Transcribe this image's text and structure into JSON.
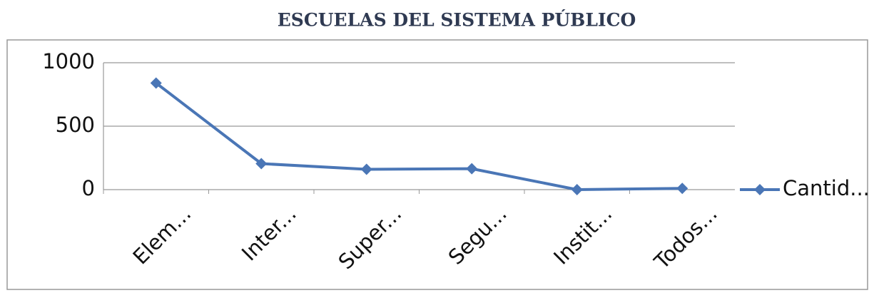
{
  "chart_data": {
    "type": "line",
    "title": "ESCUELAS DEL SISTEMA PÚBLICO",
    "categories": [
      "Elem...",
      "Inter...",
      "Super...",
      "Segu...",
      "Instit...",
      "Todos..."
    ],
    "series": [
      {
        "name": "Cantid...",
        "color": "#4a76b6",
        "values": [
          840,
          205,
          160,
          165,
          0,
          10
        ]
      }
    ],
    "ylim": [
      0,
      1000
    ],
    "yticks": [
      0,
      500,
      1000
    ],
    "grid": true,
    "legend": "right"
  }
}
